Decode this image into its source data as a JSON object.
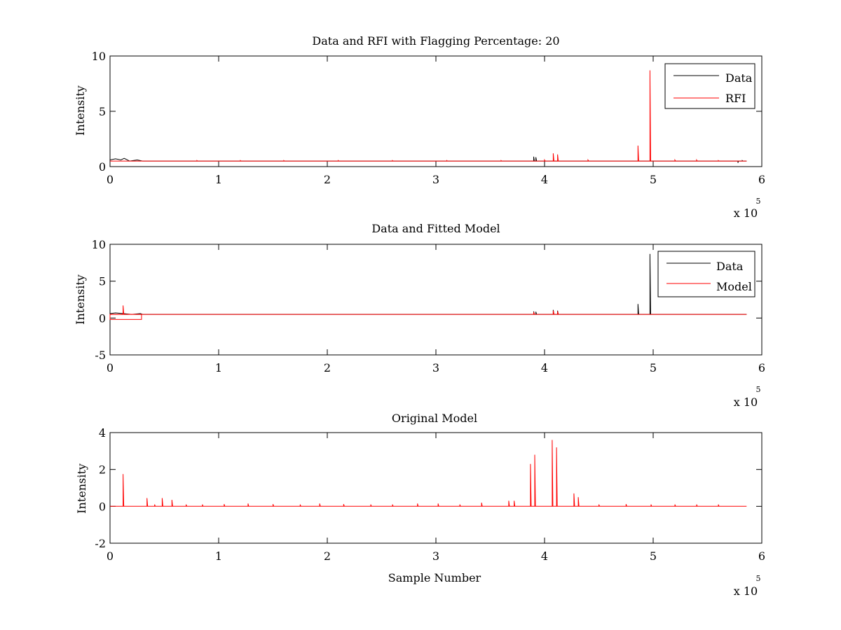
{
  "chart_data": [
    {
      "type": "line",
      "title": "Data and RFI with Flagging Percentage: 20",
      "xlabel": "",
      "ylabel": "Intensity",
      "xlim": [
        0,
        600000
      ],
      "ylim": [
        0,
        10
      ],
      "xticks": [
        0,
        1,
        2,
        3,
        4,
        5,
        6
      ],
      "yticks": [
        0,
        5,
        10
      ],
      "x_multiplier": "x 10",
      "x_exponent": "5",
      "legend": {
        "position": "top-right",
        "entries": [
          "Data",
          "RFI"
        ]
      },
      "series": [
        {
          "name": "Data",
          "color": "#000000",
          "baseline": 0.5,
          "noise_start": [
            [
              0,
              0.6
            ],
            [
              5000,
              0.7
            ],
            [
              10000,
              0.6
            ],
            [
              13000,
              0.75
            ],
            [
              18000,
              0.5
            ],
            [
              25000,
              0.6
            ],
            [
              30000,
              0.5
            ]
          ],
          "spikes": [
            [
              390000,
              0.9
            ],
            [
              392000,
              0.85
            ],
            [
              578000,
              0.35
            ],
            [
              582000,
              0.55
            ]
          ]
        },
        {
          "name": "RFI",
          "color": "#ff0000",
          "baseline": 0.5,
          "spikes": [
            [
              80000,
              0.55
            ],
            [
              120000,
              0.55
            ],
            [
              160000,
              0.55
            ],
            [
              210000,
              0.55
            ],
            [
              260000,
              0.55
            ],
            [
              310000,
              0.55
            ],
            [
              360000,
              0.55
            ],
            [
              400000,
              0.6
            ],
            [
              408000,
              1.2
            ],
            [
              412000,
              1.1
            ],
            [
              440000,
              0.6
            ],
            [
              486000,
              1.9
            ],
            [
              497000,
              8.7
            ],
            [
              520000,
              0.6
            ],
            [
              540000,
              0.6
            ],
            [
              560000,
              0.55
            ]
          ]
        }
      ]
    },
    {
      "type": "line",
      "title": "Data and Fitted Model",
      "xlabel": "",
      "ylabel": "Intensity",
      "xlim": [
        0,
        600000
      ],
      "ylim": [
        -5,
        10
      ],
      "xticks": [
        0,
        1,
        2,
        3,
        4,
        5,
        6
      ],
      "yticks": [
        -5,
        0,
        5,
        10
      ],
      "x_multiplier": "x 10",
      "x_exponent": "5",
      "legend": {
        "position": "top-right",
        "entries": [
          "Data",
          "Model"
        ]
      },
      "series": [
        {
          "name": "Data",
          "color": "#000000",
          "baseline": 0.5,
          "noise_start": [
            [
              0,
              0.6
            ],
            [
              5000,
              0.7
            ],
            [
              12000,
              0.6
            ],
            [
              20000,
              0.5
            ],
            [
              28000,
              0.6
            ],
            [
              30000,
              0.5
            ]
          ],
          "spikes": [
            [
              390000,
              0.9
            ],
            [
              392000,
              0.85
            ],
            [
              408000,
              1.1
            ],
            [
              412000,
              1.0
            ],
            [
              486000,
              1.9
            ],
            [
              497000,
              8.7
            ]
          ]
        },
        {
          "name": "Model",
          "color": "#ff0000",
          "baseline": 0.5,
          "box": {
            "x0": 0,
            "x1": 29000,
            "y": 0.0
          },
          "spikes": [
            [
              12000,
              1.7
            ],
            [
              390000,
              0.8
            ],
            [
              408000,
              1.0
            ],
            [
              412000,
              0.9
            ]
          ]
        }
      ]
    },
    {
      "type": "line",
      "title": "Original Model",
      "xlabel": "Sample Number",
      "ylabel": "Intensity",
      "xlim": [
        0,
        600000
      ],
      "ylim": [
        -2,
        4
      ],
      "xticks": [
        0,
        1,
        2,
        3,
        4,
        5,
        6
      ],
      "yticks": [
        -2,
        0,
        2,
        4
      ],
      "x_multiplier": "x 10",
      "x_exponent": "5",
      "series": [
        {
          "name": "Model",
          "color": "#ff0000",
          "baseline": 0.0,
          "x_end": 586000,
          "spikes": [
            [
              12000,
              1.75
            ],
            [
              34000,
              0.45
            ],
            [
              41000,
              0.1
            ],
            [
              48000,
              0.45
            ],
            [
              57000,
              0.35
            ],
            [
              70000,
              0.1
            ],
            [
              85000,
              0.1
            ],
            [
              105000,
              0.12
            ],
            [
              127000,
              0.15
            ],
            [
              150000,
              0.12
            ],
            [
              175000,
              0.1
            ],
            [
              193000,
              0.15
            ],
            [
              215000,
              0.12
            ],
            [
              240000,
              0.1
            ],
            [
              260000,
              0.1
            ],
            [
              283000,
              0.15
            ],
            [
              302000,
              0.15
            ],
            [
              322000,
              0.1
            ],
            [
              342000,
              0.2
            ],
            [
              367000,
              0.3
            ],
            [
              372000,
              0.3
            ],
            [
              387000,
              2.3
            ],
            [
              391000,
              2.8
            ],
            [
              407000,
              3.6
            ],
            [
              411000,
              3.2
            ],
            [
              427000,
              0.7
            ],
            [
              431000,
              0.5
            ],
            [
              450000,
              0.1
            ],
            [
              475000,
              0.12
            ],
            [
              498000,
              0.1
            ],
            [
              520000,
              0.1
            ],
            [
              540000,
              0.1
            ],
            [
              560000,
              0.1
            ]
          ]
        }
      ]
    }
  ]
}
